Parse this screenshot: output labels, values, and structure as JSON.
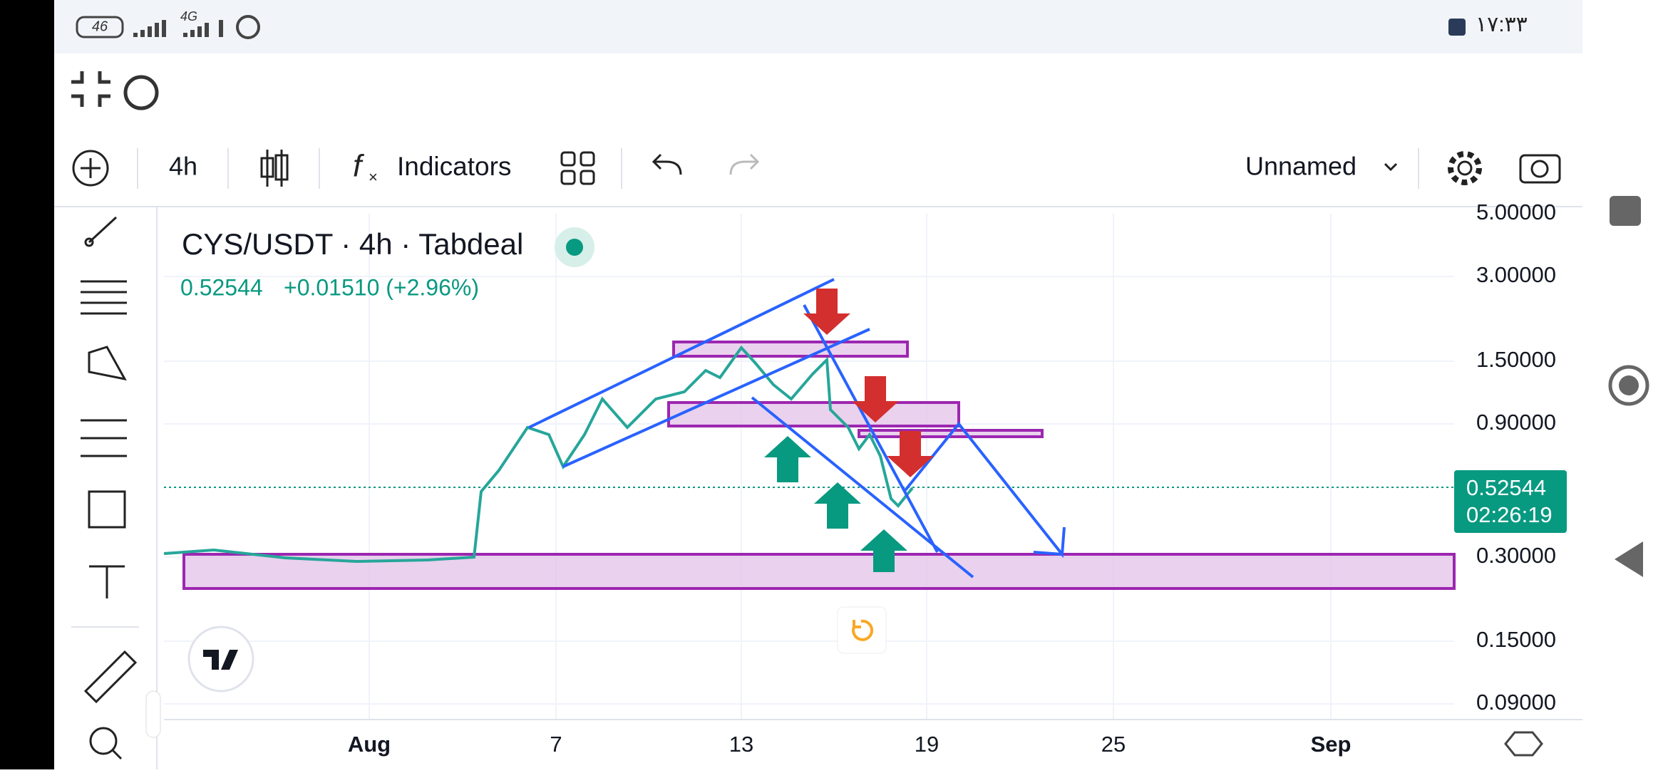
{
  "status": {
    "battery": "46",
    "network": "4G",
    "time": "۱۷:۳۳"
  },
  "toolbar": {
    "interval": "4h",
    "indicators": "Indicators",
    "layout": "Unnamed"
  },
  "chart": {
    "title": "CYS/USDT · 4h · Tabdeal",
    "last": "0.52544",
    "change": "+0.01510 (+2.96%)",
    "price_labels": [
      "5.00000",
      "3.00000",
      "1.50000",
      "0.90000",
      "0.30000",
      "0.15000",
      "0.09000"
    ],
    "badge_price": "0.52544",
    "badge_timer": "02:26:19",
    "date_labels": [
      "Aug",
      "7",
      "13",
      "19",
      "25",
      "Sep"
    ]
  }
}
